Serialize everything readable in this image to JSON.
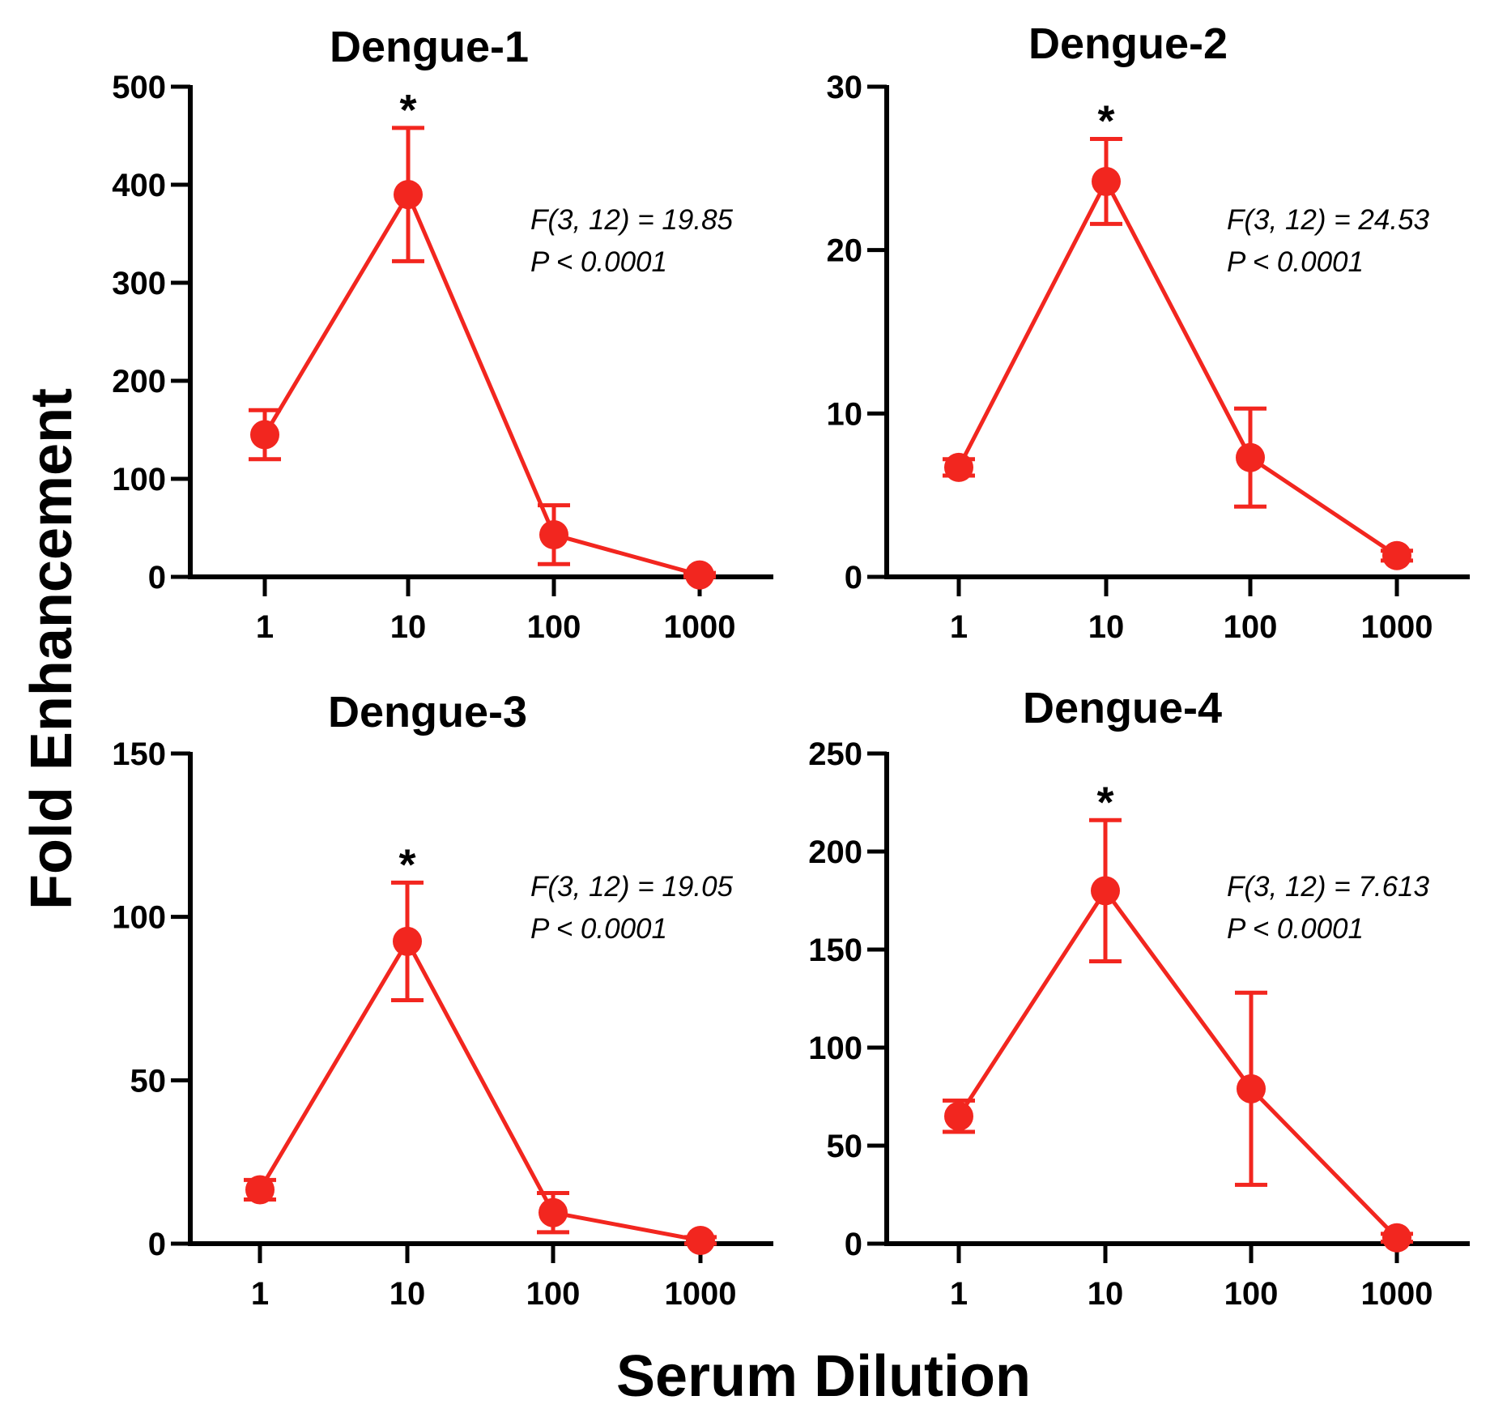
{
  "figure": {
    "shared_ylabel": "Fold Enhancement",
    "shared_xlabel": "Serum Dilution",
    "colors": {
      "series": "#f2261f",
      "axis": "#000000"
    }
  },
  "chart_data": [
    {
      "type": "line",
      "title": "Dengue-1",
      "x": [
        1,
        10,
        100,
        1000
      ],
      "xscale": "log",
      "x_tick_labels": [
        "1",
        "10",
        "100",
        "1000"
      ],
      "ylim": [
        0,
        500
      ],
      "yticks": [
        0,
        100,
        200,
        300,
        400,
        500
      ],
      "series": [
        {
          "values": [
            145,
            390,
            43,
            2
          ],
          "error": [
            25,
            68,
            30,
            2
          ]
        }
      ],
      "significance_marker": {
        "x": 10,
        "symbol": "*"
      },
      "annotation": [
        "F(3, 12) = 19.85",
        "P < 0.0001"
      ]
    },
    {
      "type": "line",
      "title": "Dengue-2",
      "x": [
        1,
        10,
        100,
        1000
      ],
      "xscale": "log",
      "x_tick_labels": [
        "1",
        "10",
        "100",
        "1000"
      ],
      "ylim": [
        0,
        30
      ],
      "yticks": [
        0,
        10,
        20,
        30
      ],
      "series": [
        {
          "values": [
            6.7,
            24.2,
            7.3,
            1.3
          ],
          "error": [
            0.5,
            2.6,
            3.0,
            0.3
          ]
        }
      ],
      "significance_marker": {
        "x": 10,
        "symbol": "*"
      },
      "annotation": [
        "F(3, 12) = 24.53",
        "P < 0.0001"
      ]
    },
    {
      "type": "line",
      "title": "Dengue-3",
      "x": [
        1,
        10,
        100,
        1000
      ],
      "xscale": "log",
      "x_tick_labels": [
        "1",
        "10",
        "100",
        "1000"
      ],
      "ylim": [
        0,
        150
      ],
      "yticks": [
        0,
        50,
        100,
        150
      ],
      "series": [
        {
          "values": [
            16.5,
            92.5,
            9.5,
            1
          ],
          "error": [
            3,
            18,
            6,
            1
          ]
        }
      ],
      "significance_marker": {
        "x": 10,
        "symbol": "*"
      },
      "annotation": [
        "F(3, 12) = 19.05",
        "P < 0.0001"
      ]
    },
    {
      "type": "line",
      "title": "Dengue-4",
      "x": [
        1,
        10,
        100,
        1000
      ],
      "xscale": "log",
      "x_tick_labels": [
        "1",
        "10",
        "100",
        "1000"
      ],
      "ylim": [
        0,
        250
      ],
      "yticks": [
        0,
        50,
        100,
        150,
        200,
        250
      ],
      "series": [
        {
          "values": [
            65,
            180,
            79,
            3
          ],
          "error": [
            8,
            36,
            49,
            2
          ]
        }
      ],
      "significance_marker": {
        "x": 10,
        "symbol": "*"
      },
      "annotation": [
        "F(3, 12) = 7.613",
        "P < 0.0001"
      ]
    }
  ]
}
